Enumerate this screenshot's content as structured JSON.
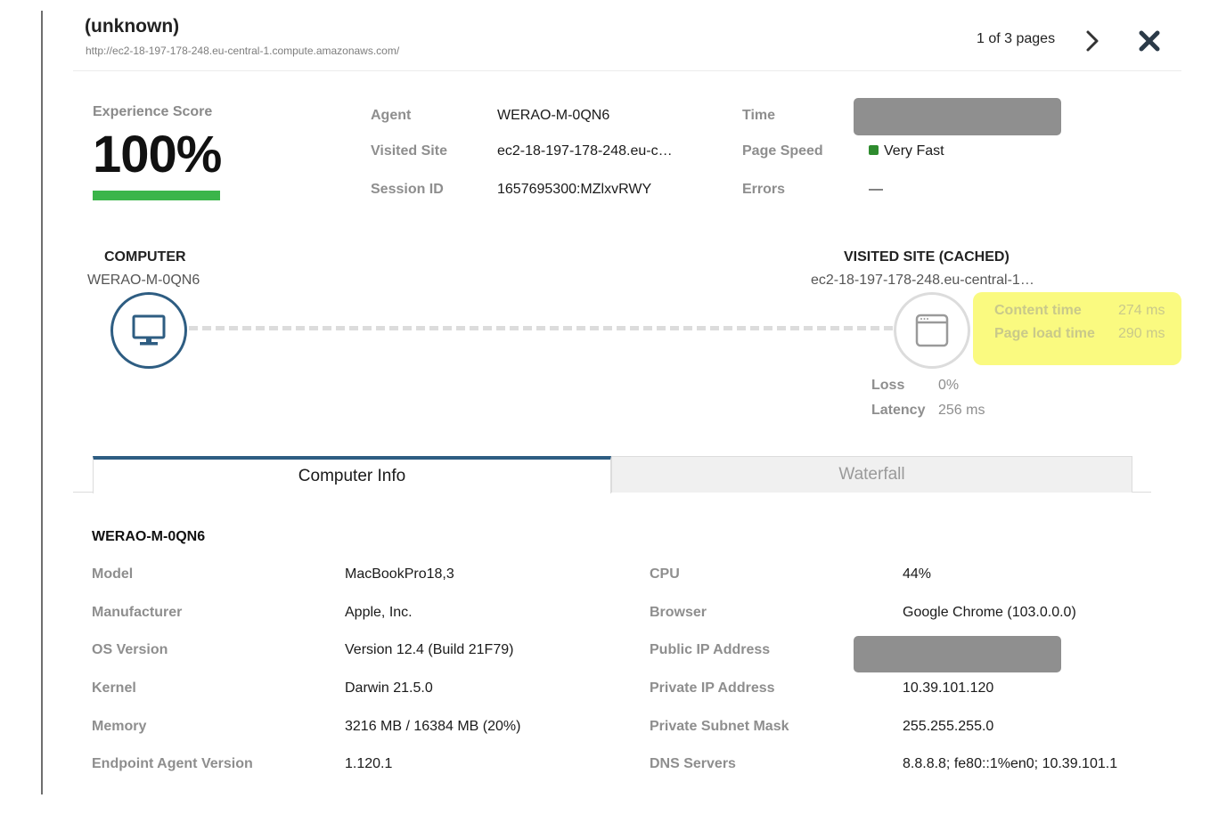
{
  "header": {
    "title": "(unknown)",
    "url": "http://ec2-18-197-178-248.eu-central-1.compute.amazonaws.com/",
    "pager": "1 of 3 pages",
    "next_icon": "chevron-right-icon",
    "close_icon": "close-icon"
  },
  "score": {
    "label": "Experience Score",
    "value": "100%",
    "fraction": 1.0,
    "bar_color": "#3bb54a"
  },
  "summary": {
    "agent_label": "Agent",
    "agent_value": "WERAO-M-0QN6",
    "visited_site_label": "Visited Site",
    "visited_site_value": "ec2-18-197-178-248.eu-c…",
    "session_id_label": "Session ID",
    "session_id_value": "1657695300:MZlxvRWY",
    "time_label": "Time",
    "page_speed_label": "Page Speed",
    "page_speed_value": "Very Fast",
    "page_speed_color": "#2e8b2e",
    "errors_label": "Errors",
    "errors_value": "—"
  },
  "path": {
    "computer_title": "COMPUTER",
    "computer_name": "WERAO-M-0QN6",
    "computer_icon": "monitor-icon",
    "site_title": "VISITED SITE (CACHED)",
    "site_name": "ec2-18-197-178-248.eu-central-1…",
    "site_icon": "browser-window-icon",
    "content_time_label": "Content time",
    "content_time_value": "274 ms",
    "page_load_label": "Page load time",
    "page_load_value": "290 ms",
    "loss_label": "Loss",
    "loss_value": "0%",
    "latency_label": "Latency",
    "latency_value": "256 ms",
    "accent_color": "#2e5d82",
    "highlight_color": "#fafa80"
  },
  "tabs": [
    {
      "label": "Computer Info",
      "active": true
    },
    {
      "label": "Waterfall",
      "active": false
    }
  ],
  "computer_info": {
    "title": "WERAO-M-0QN6",
    "left": [
      {
        "label": "Model",
        "value": "MacBookPro18,3"
      },
      {
        "label": "Manufacturer",
        "value": "Apple, Inc."
      },
      {
        "label": "OS Version",
        "value": "Version 12.4 (Build 21F79)"
      },
      {
        "label": "Kernel",
        "value": "Darwin 21.5.0"
      },
      {
        "label": "Memory",
        "value": "3216 MB / 16384 MB (20%)"
      },
      {
        "label": "Endpoint Agent Version",
        "value": "1.120.1"
      }
    ],
    "right": [
      {
        "label": "CPU",
        "value": "44%"
      },
      {
        "label": "Browser",
        "value": "Google Chrome (103.0.0.0)"
      },
      {
        "label": "Public IP Address",
        "value": ""
      },
      {
        "label": "Private IP Address",
        "value": "10.39.101.120"
      },
      {
        "label": "Private Subnet Mask",
        "value": "255.255.255.0"
      },
      {
        "label": "DNS Servers",
        "value": "8.8.8.8; fe80::1%en0; 10.39.101.1"
      }
    ]
  }
}
